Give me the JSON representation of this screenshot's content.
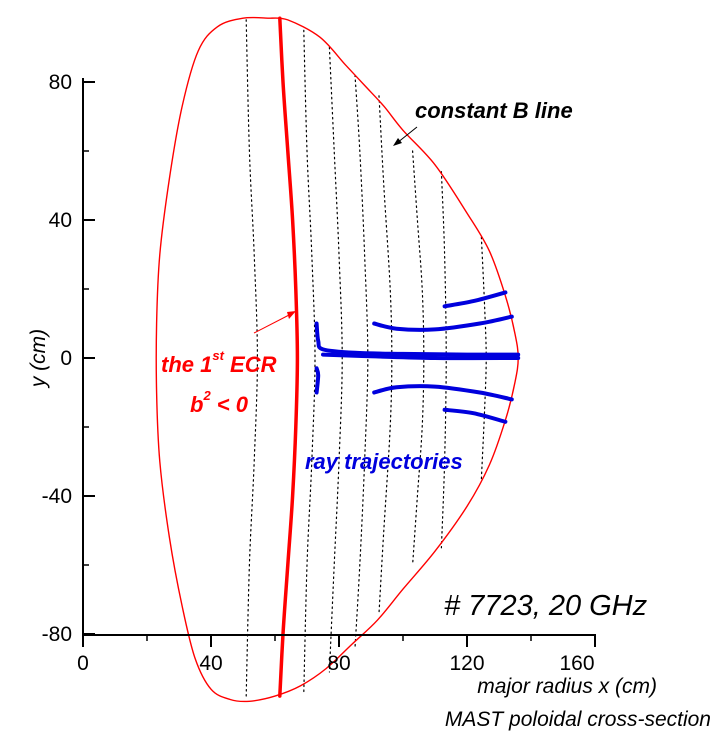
{
  "chart_data": {
    "type": "line",
    "title": "",
    "xlabel": "major radius x (cm)",
    "ylabel": "y (cm)",
    "subtitle": "MAST poloidal cross-section",
    "xlim": [
      0,
      160
    ],
    "ylim": [
      -80,
      80
    ],
    "xticks": [
      "0",
      "40",
      "80",
      "120",
      "160"
    ],
    "yticks": [
      "80",
      "40",
      "0",
      "-40",
      "-80"
    ],
    "grid": false,
    "colors": {
      "boundary": "#ff0000",
      "ecr": "#ff0000",
      "rays": "#0000dd",
      "b_lines": "#000000"
    },
    "annotations": {
      "constant_b": "constant B line",
      "ecr_main": "the 1",
      "ecr_sup": "st",
      "ecr_tail": " ECR",
      "b2_base": "b",
      "b2_sup": "2",
      "b2_tail": " < 0",
      "rays": "ray trajectories",
      "shot": "# 7723, 20 GHz"
    },
    "boundary": [
      [
        58,
        98.5
      ],
      [
        64,
        98
      ],
      [
        74,
        93
      ],
      [
        82,
        85
      ],
      [
        88,
        79
      ],
      [
        94,
        73
      ],
      [
        100,
        66
      ],
      [
        110,
        56
      ],
      [
        120,
        42
      ],
      [
        127,
        31
      ],
      [
        132,
        18
      ],
      [
        135,
        7
      ],
      [
        136,
        0
      ],
      [
        135,
        -7
      ],
      [
        132,
        -18
      ],
      [
        127,
        -31
      ],
      [
        120,
        -43
      ],
      [
        110,
        -56
      ],
      [
        100,
        -67
      ],
      [
        92,
        -76
      ],
      [
        84,
        -83
      ],
      [
        76,
        -90
      ],
      [
        68,
        -95
      ],
      [
        60,
        -98
      ],
      [
        52,
        -99.5
      ],
      [
        46,
        -99
      ],
      [
        40,
        -96
      ],
      [
        35,
        -87
      ],
      [
        31,
        -72
      ],
      [
        27,
        -52
      ],
      [
        24,
        -30
      ],
      [
        23,
        -10
      ],
      [
        23,
        10
      ],
      [
        24,
        30
      ],
      [
        27,
        52
      ],
      [
        31,
        73
      ],
      [
        36,
        89
      ],
      [
        42,
        96
      ],
      [
        50,
        98.5
      ],
      [
        58,
        98.5
      ]
    ],
    "ecr_resonance": [
      [
        61.5,
        98.5
      ],
      [
        62.5,
        80
      ],
      [
        64,
        60
      ],
      [
        65.5,
        40
      ],
      [
        66.5,
        20
      ],
      [
        67,
        0
      ],
      [
        66.5,
        -20
      ],
      [
        65.5,
        -40
      ],
      [
        64,
        -60
      ],
      [
        62.5,
        -80
      ],
      [
        61.5,
        -98
      ]
    ],
    "constant_b_lines": [
      [
        [
          51,
          98
        ],
        [
          52,
          60
        ],
        [
          53.5,
          30
        ],
        [
          54.5,
          0
        ],
        [
          53.5,
          -30
        ],
        [
          52,
          -60
        ],
        [
          51,
          -98
        ]
      ],
      [
        [
          69,
          95
        ],
        [
          70,
          60
        ],
        [
          71.5,
          30
        ],
        [
          72.5,
          0
        ],
        [
          71.5,
          -30
        ],
        [
          70,
          -60
        ],
        [
          69,
          -97
        ]
      ],
      [
        [
          77,
          90
        ],
        [
          78.5,
          60
        ],
        [
          80,
          30
        ],
        [
          81,
          0
        ],
        [
          80,
          -30
        ],
        [
          78.5,
          -60
        ],
        [
          77,
          -91
        ]
      ],
      [
        [
          85,
          82
        ],
        [
          86.5,
          60
        ],
        [
          88,
          30
        ],
        [
          89,
          0
        ],
        [
          88,
          -30
        ],
        [
          86.5,
          -60
        ],
        [
          85,
          -84
        ]
      ],
      [
        [
          92.5,
          76
        ],
        [
          94,
          50
        ],
        [
          96,
          20
        ],
        [
          96.5,
          0
        ],
        [
          96,
          -20
        ],
        [
          94,
          -50
        ],
        [
          92.5,
          -74
        ]
      ],
      [
        [
          103,
          60
        ],
        [
          104.5,
          40
        ],
        [
          106,
          20
        ],
        [
          106.5,
          0
        ],
        [
          106,
          -20
        ],
        [
          104.5,
          -40
        ],
        [
          103,
          -60
        ]
      ],
      [
        [
          112,
          54
        ],
        [
          113,
          30
        ],
        [
          113.5,
          0
        ],
        [
          113,
          -30
        ],
        [
          112,
          -55
        ]
      ],
      [
        [
          124.5,
          35
        ],
        [
          125.5,
          15
        ],
        [
          126,
          0
        ],
        [
          125.5,
          -15
        ],
        [
          124.5,
          -35
        ]
      ]
    ],
    "rays": [
      [
        [
          73,
          10
        ],
        [
          73.5,
          5
        ],
        [
          75,
          2.5
        ],
        [
          85,
          1.5
        ],
        [
          100,
          1.2
        ],
        [
          120,
          1
        ],
        [
          136,
          1
        ]
      ],
      [
        [
          73,
          -3
        ],
        [
          73.5,
          -5
        ],
        [
          73,
          -10
        ]
      ],
      [
        [
          75,
          1
        ],
        [
          90,
          0.5
        ],
        [
          110,
          0
        ],
        [
          136,
          0
        ]
      ],
      [
        [
          91,
          10
        ],
        [
          98,
          8.5
        ],
        [
          110,
          8.3
        ],
        [
          124,
          10
        ],
        [
          134,
          12
        ]
      ],
      [
        [
          91,
          -10
        ],
        [
          98,
          -8.5
        ],
        [
          110,
          -8.3
        ],
        [
          124,
          -10
        ],
        [
          134,
          -12
        ]
      ],
      [
        [
          113,
          15
        ],
        [
          122,
          16.5
        ],
        [
          132,
          19
        ]
      ],
      [
        [
          113,
          -15
        ],
        [
          122,
          -16
        ],
        [
          132,
          -18.5
        ]
      ]
    ]
  }
}
